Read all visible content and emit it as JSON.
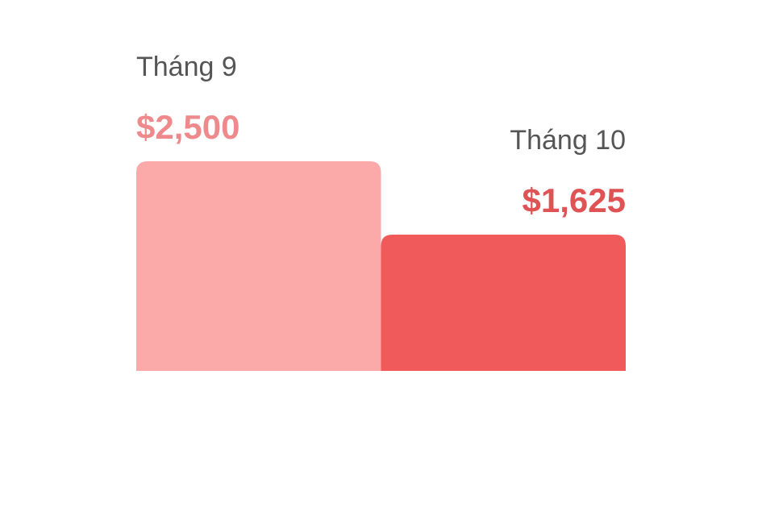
{
  "chart_data": {
    "type": "bar",
    "categories": [
      "Tháng 9",
      "Tháng 10"
    ],
    "values": [
      2500,
      1625
    ],
    "value_labels": [
      "$2,500",
      "$1,625"
    ],
    "title": "",
    "xlabel": "",
    "ylabel": "",
    "ylim": [
      0,
      2500
    ],
    "grid": false,
    "legend": "none",
    "colors": {
      "bars": [
        "#fca9aa",
        "#f05a5b"
      ],
      "value_labels": [
        "#ee8a8b",
        "#e05354"
      ],
      "category_labels": "#555555"
    }
  }
}
